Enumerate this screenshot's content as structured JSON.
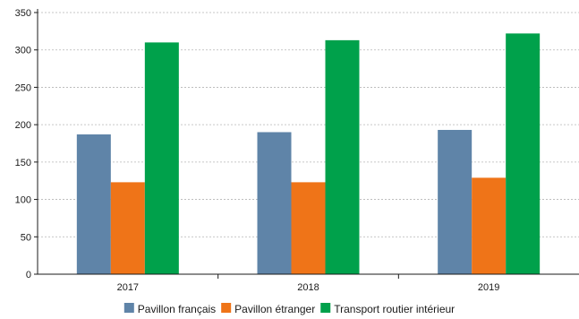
{
  "chart_data": {
    "type": "bar",
    "categories": [
      "2017",
      "2018",
      "2019"
    ],
    "series": [
      {
        "name": "Pavillon français",
        "color": "#5f84a8",
        "values": [
          187,
          190,
          193
        ]
      },
      {
        "name": "Pavillon étranger",
        "color": "#ef7418",
        "values": [
          123,
          123,
          129
        ]
      },
      {
        "name": "Transport routier intérieur",
        "color": "#00a14b",
        "values": [
          310,
          313,
          322
        ]
      }
    ],
    "ylim": [
      0,
      350
    ],
    "yticks": [
      0,
      50,
      100,
      150,
      200,
      250,
      300,
      350
    ],
    "grid": true,
    "legend_position": "bottom"
  }
}
